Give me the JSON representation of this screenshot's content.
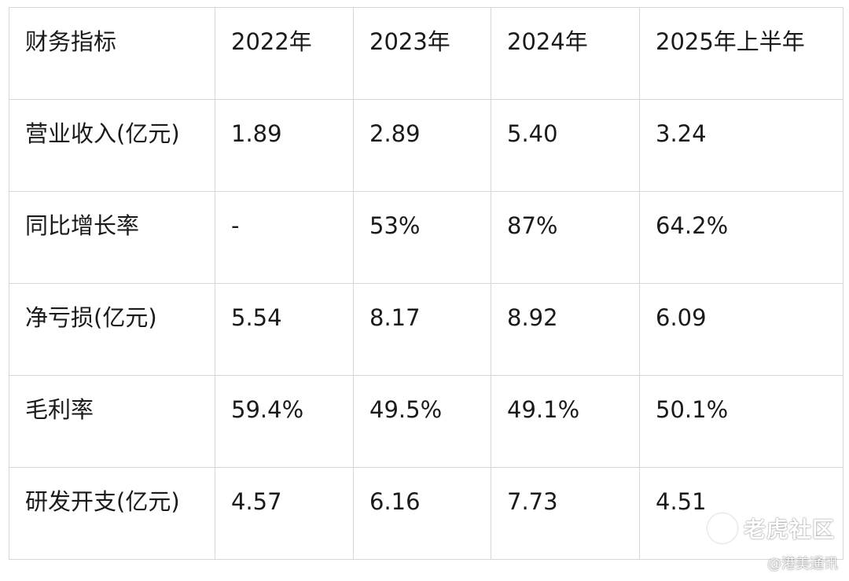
{
  "table": {
    "header": [
      "财务指标",
      "2022年",
      "2023年",
      "2024年",
      "2025年上半年"
    ],
    "rows": [
      [
        "营业收入(亿元)",
        "1.89",
        "2.89",
        "5.40",
        "3.24"
      ],
      [
        "同比增长率",
        "-",
        "53%",
        "87%",
        "64.2%"
      ],
      [
        "净亏损(亿元)",
        "5.54",
        "8.17",
        "8.92",
        "6.09"
      ],
      [
        "毛利率",
        "59.4%",
        "49.5%",
        "49.1%",
        "50.1%"
      ],
      [
        "研发开支(亿元)",
        "4.57",
        "6.16",
        "7.73",
        "4.51"
      ]
    ]
  },
  "watermark": {
    "brand": "老虎社区",
    "source": "@港美通讯",
    "logo_icon": "tiger-logo-icon"
  }
}
